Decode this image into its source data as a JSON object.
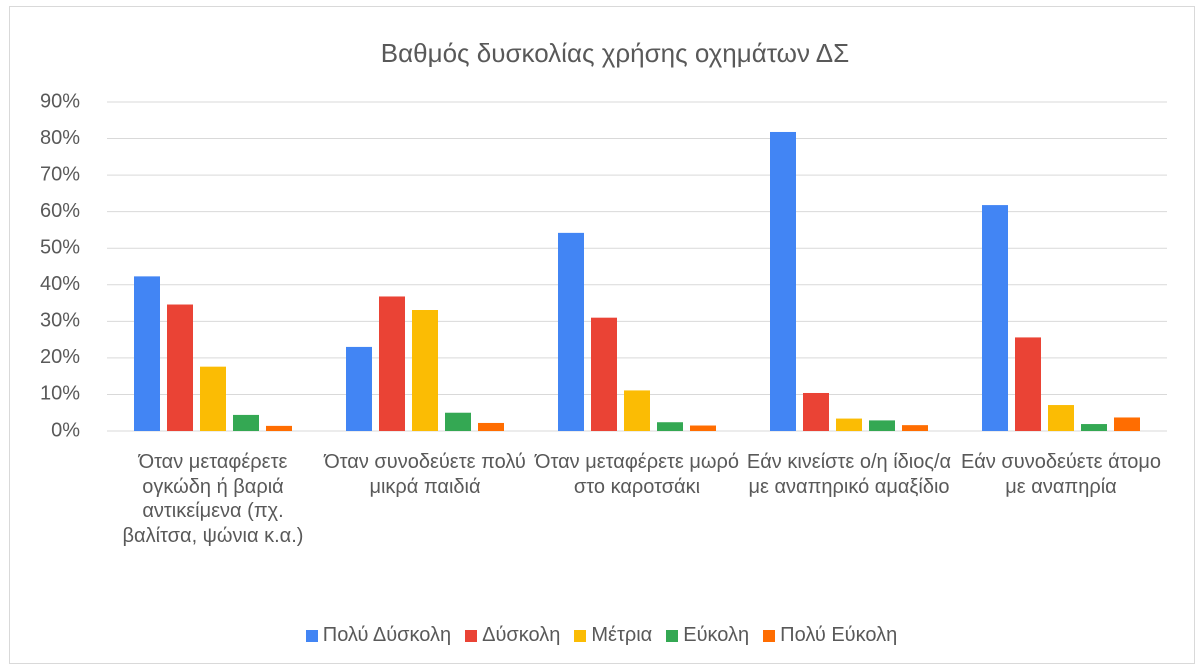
{
  "chart_data": {
    "type": "bar",
    "title": "Βαθμός δυσκολίας χρήσης οχημάτων ΔΣ",
    "categories": [
      "Όταν μεταφέρετε ογκώδη ή βαριά αντικείμενα (πχ. βαλίτσα, ψώνια κ.α.)",
      "Όταν συνοδεύετε πολύ μικρά παιδιά",
      "Όταν μεταφέρετε μωρό στο καροτσάκι",
      "Εάν κινείστε ο/η ίδιος/α με αναπηρικό αμαξίδιο",
      "Εάν συνοδεύετε άτομο με αναπηρία"
    ],
    "series": [
      {
        "name": "Πολύ Δύσκολη",
        "color": "#4285f4",
        "values": [
          42.3,
          23,
          54.2,
          81.8,
          61.8
        ]
      },
      {
        "name": "Δύσκολη",
        "color": "#ea4335",
        "values": [
          34.6,
          36.8,
          31,
          10.4,
          25.6
        ]
      },
      {
        "name": "Μέτρια",
        "color": "#fbbc04",
        "values": [
          17.6,
          33.1,
          11.1,
          3.4,
          7.1
        ]
      },
      {
        "name": "Εύκολη",
        "color": "#34a853",
        "values": [
          4.4,
          5,
          2.4,
          2.9,
          1.9
        ]
      },
      {
        "name": "Πολύ Εύκολη",
        "color": "#ff6d01",
        "values": [
          1.4,
          2.2,
          1.5,
          1.6,
          3.7
        ]
      }
    ],
    "ylim": [
      0,
      90
    ],
    "yticks": [
      {
        "value": 0,
        "label": "0%"
      },
      {
        "value": 10,
        "label": "10%"
      },
      {
        "value": 20,
        "label": "20%"
      },
      {
        "value": 30,
        "label": "30%"
      },
      {
        "value": 40,
        "label": "40%"
      },
      {
        "value": 50,
        "label": "50%"
      },
      {
        "value": 60,
        "label": "60%"
      },
      {
        "value": 70,
        "label": "70%"
      },
      {
        "value": 80,
        "label": "80%"
      },
      {
        "value": 90,
        "label": "90%"
      }
    ],
    "grid": true,
    "legend": "bottom"
  }
}
